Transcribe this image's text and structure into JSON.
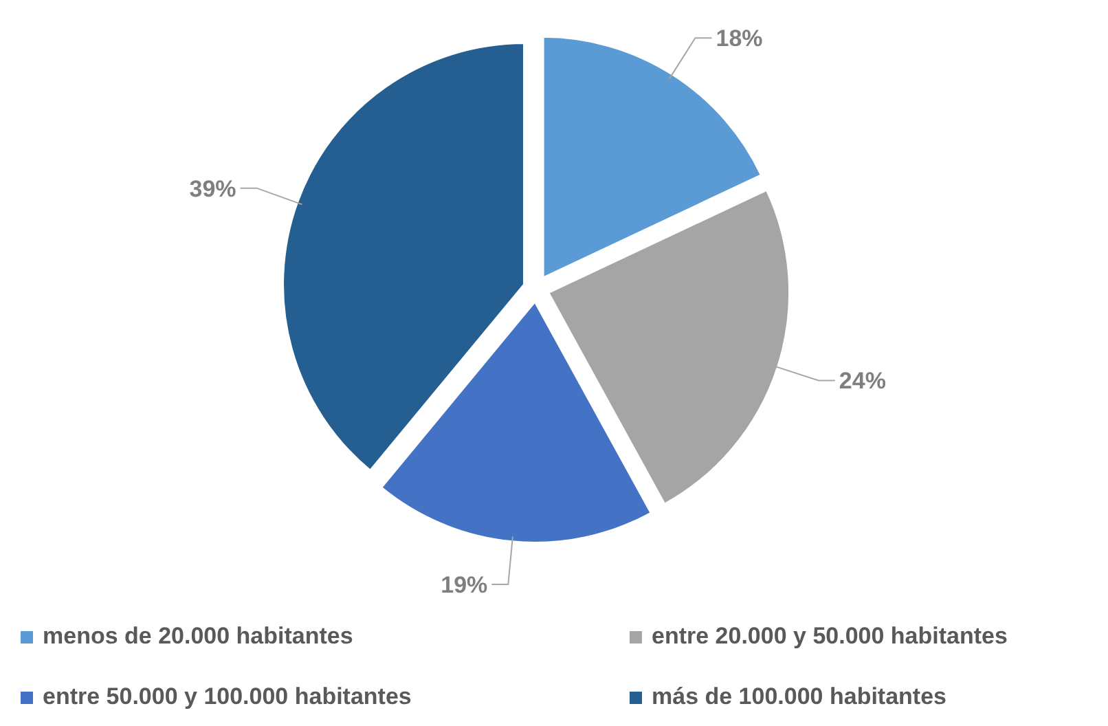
{
  "chart_data": {
    "type": "pie",
    "categories": [
      "menos de 20.000 habitantes",
      "entre 20.000 y 50.000 habitantes",
      "entre 50.000 y 100.000 habitantes",
      "más de 100.000 habitantes"
    ],
    "values": [
      18,
      24,
      19,
      39
    ],
    "colors": [
      "#5b9bd5",
      "#a5a5a5",
      "#4472c4",
      "#255e91"
    ],
    "value_labels": [
      "18%",
      "24%",
      "19%",
      "39%"
    ],
    "legend": "bottom"
  }
}
